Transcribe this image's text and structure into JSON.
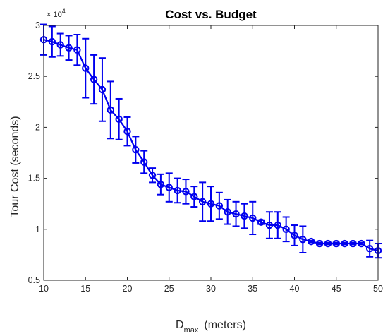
{
  "chart_data": {
    "type": "line",
    "title": "Cost vs. Budget",
    "xlabel_main": "D",
    "xlabel_sub": "max",
    "xlabel_unit": "(meters)",
    "ylabel": "Tour Cost (seconds)",
    "y_multiplier_base": "× 10",
    "y_multiplier_exp": "4",
    "xlim": [
      10,
      50
    ],
    "ylim": [
      0.5,
      3
    ],
    "xticks": [
      10,
      15,
      20,
      25,
      30,
      35,
      40,
      45,
      50
    ],
    "yticks": [
      0.5,
      1,
      1.5,
      2,
      2.5,
      3
    ],
    "ytick_labels": [
      "0.5",
      "1",
      "1.5",
      "2",
      "2.5",
      "3"
    ],
    "grid": false,
    "color": "#0000ee",
    "series": [
      {
        "x": [
          10,
          11,
          12,
          13,
          14,
          15,
          16,
          17,
          18,
          19,
          20,
          21,
          22,
          23,
          24,
          25,
          26,
          27,
          28,
          29,
          30,
          31,
          32,
          33,
          34,
          35,
          36,
          37,
          38,
          39,
          40,
          41,
          42,
          43,
          44,
          45,
          46,
          47,
          48,
          49,
          50
        ],
        "y": [
          2.86,
          2.84,
          2.81,
          2.78,
          2.76,
          2.58,
          2.47,
          2.37,
          2.17,
          2.08,
          1.96,
          1.78,
          1.66,
          1.53,
          1.44,
          1.41,
          1.38,
          1.37,
          1.32,
          1.27,
          1.25,
          1.23,
          1.17,
          1.15,
          1.13,
          1.11,
          1.07,
          1.04,
          1.04,
          1.0,
          0.94,
          0.9,
          0.88,
          0.86,
          0.86,
          0.86,
          0.86,
          0.86,
          0.86,
          0.81,
          0.79
        ],
        "err": [
          0.15,
          0.15,
          0.11,
          0.12,
          0.15,
          0.29,
          0.24,
          0.31,
          0.28,
          0.2,
          0.14,
          0.13,
          0.11,
          0.07,
          0.1,
          0.14,
          0.12,
          0.12,
          0.1,
          0.19,
          0.17,
          0.13,
          0.12,
          0.12,
          0.12,
          0.16,
          0.02,
          0.13,
          0.13,
          0.12,
          0.1,
          0.13,
          0.01,
          0.01,
          0.01,
          0.01,
          0.01,
          0.01,
          0.01,
          0.08,
          0.07
        ]
      }
    ]
  }
}
